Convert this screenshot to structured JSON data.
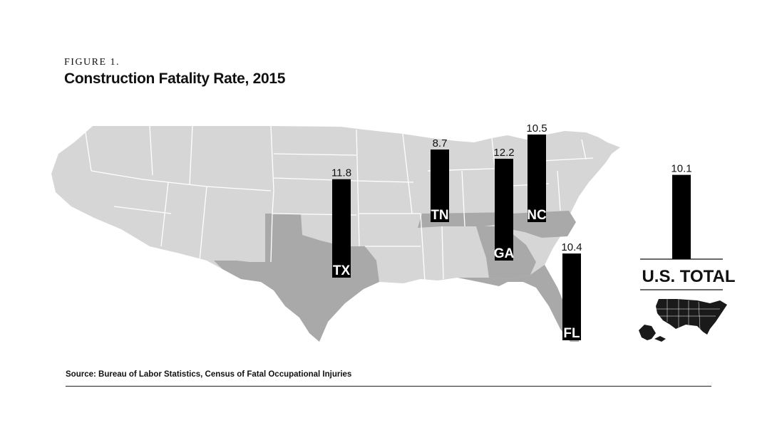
{
  "figure_label": "FIGURE 1.",
  "colors": {
    "map_base": "#d6d6d6",
    "map_highlight": "#a9a9a9",
    "state_border": "#ffffff",
    "bar": "#000000",
    "us_icon": "#1a1a1a"
  },
  "chart_data": {
    "type": "bar",
    "title": "Construction Fatality Rate, 2015",
    "categories": [
      "TX",
      "TN",
      "GA",
      "NC",
      "FL",
      "U.S. TOTAL"
    ],
    "values": [
      11.8,
      8.7,
      12.2,
      10.5,
      10.4,
      10.1
    ],
    "value_labels": [
      "11.8",
      "8.7",
      "12.2",
      "10.5",
      "10.4",
      "10.1"
    ],
    "highlighted_states": [
      "TX",
      "TN",
      "GA",
      "NC",
      "FL"
    ],
    "total_label": "U.S. TOTAL"
  },
  "source": "Source: Bureau of Labor Statistics, Census of Fatal Occupational Injuries"
}
